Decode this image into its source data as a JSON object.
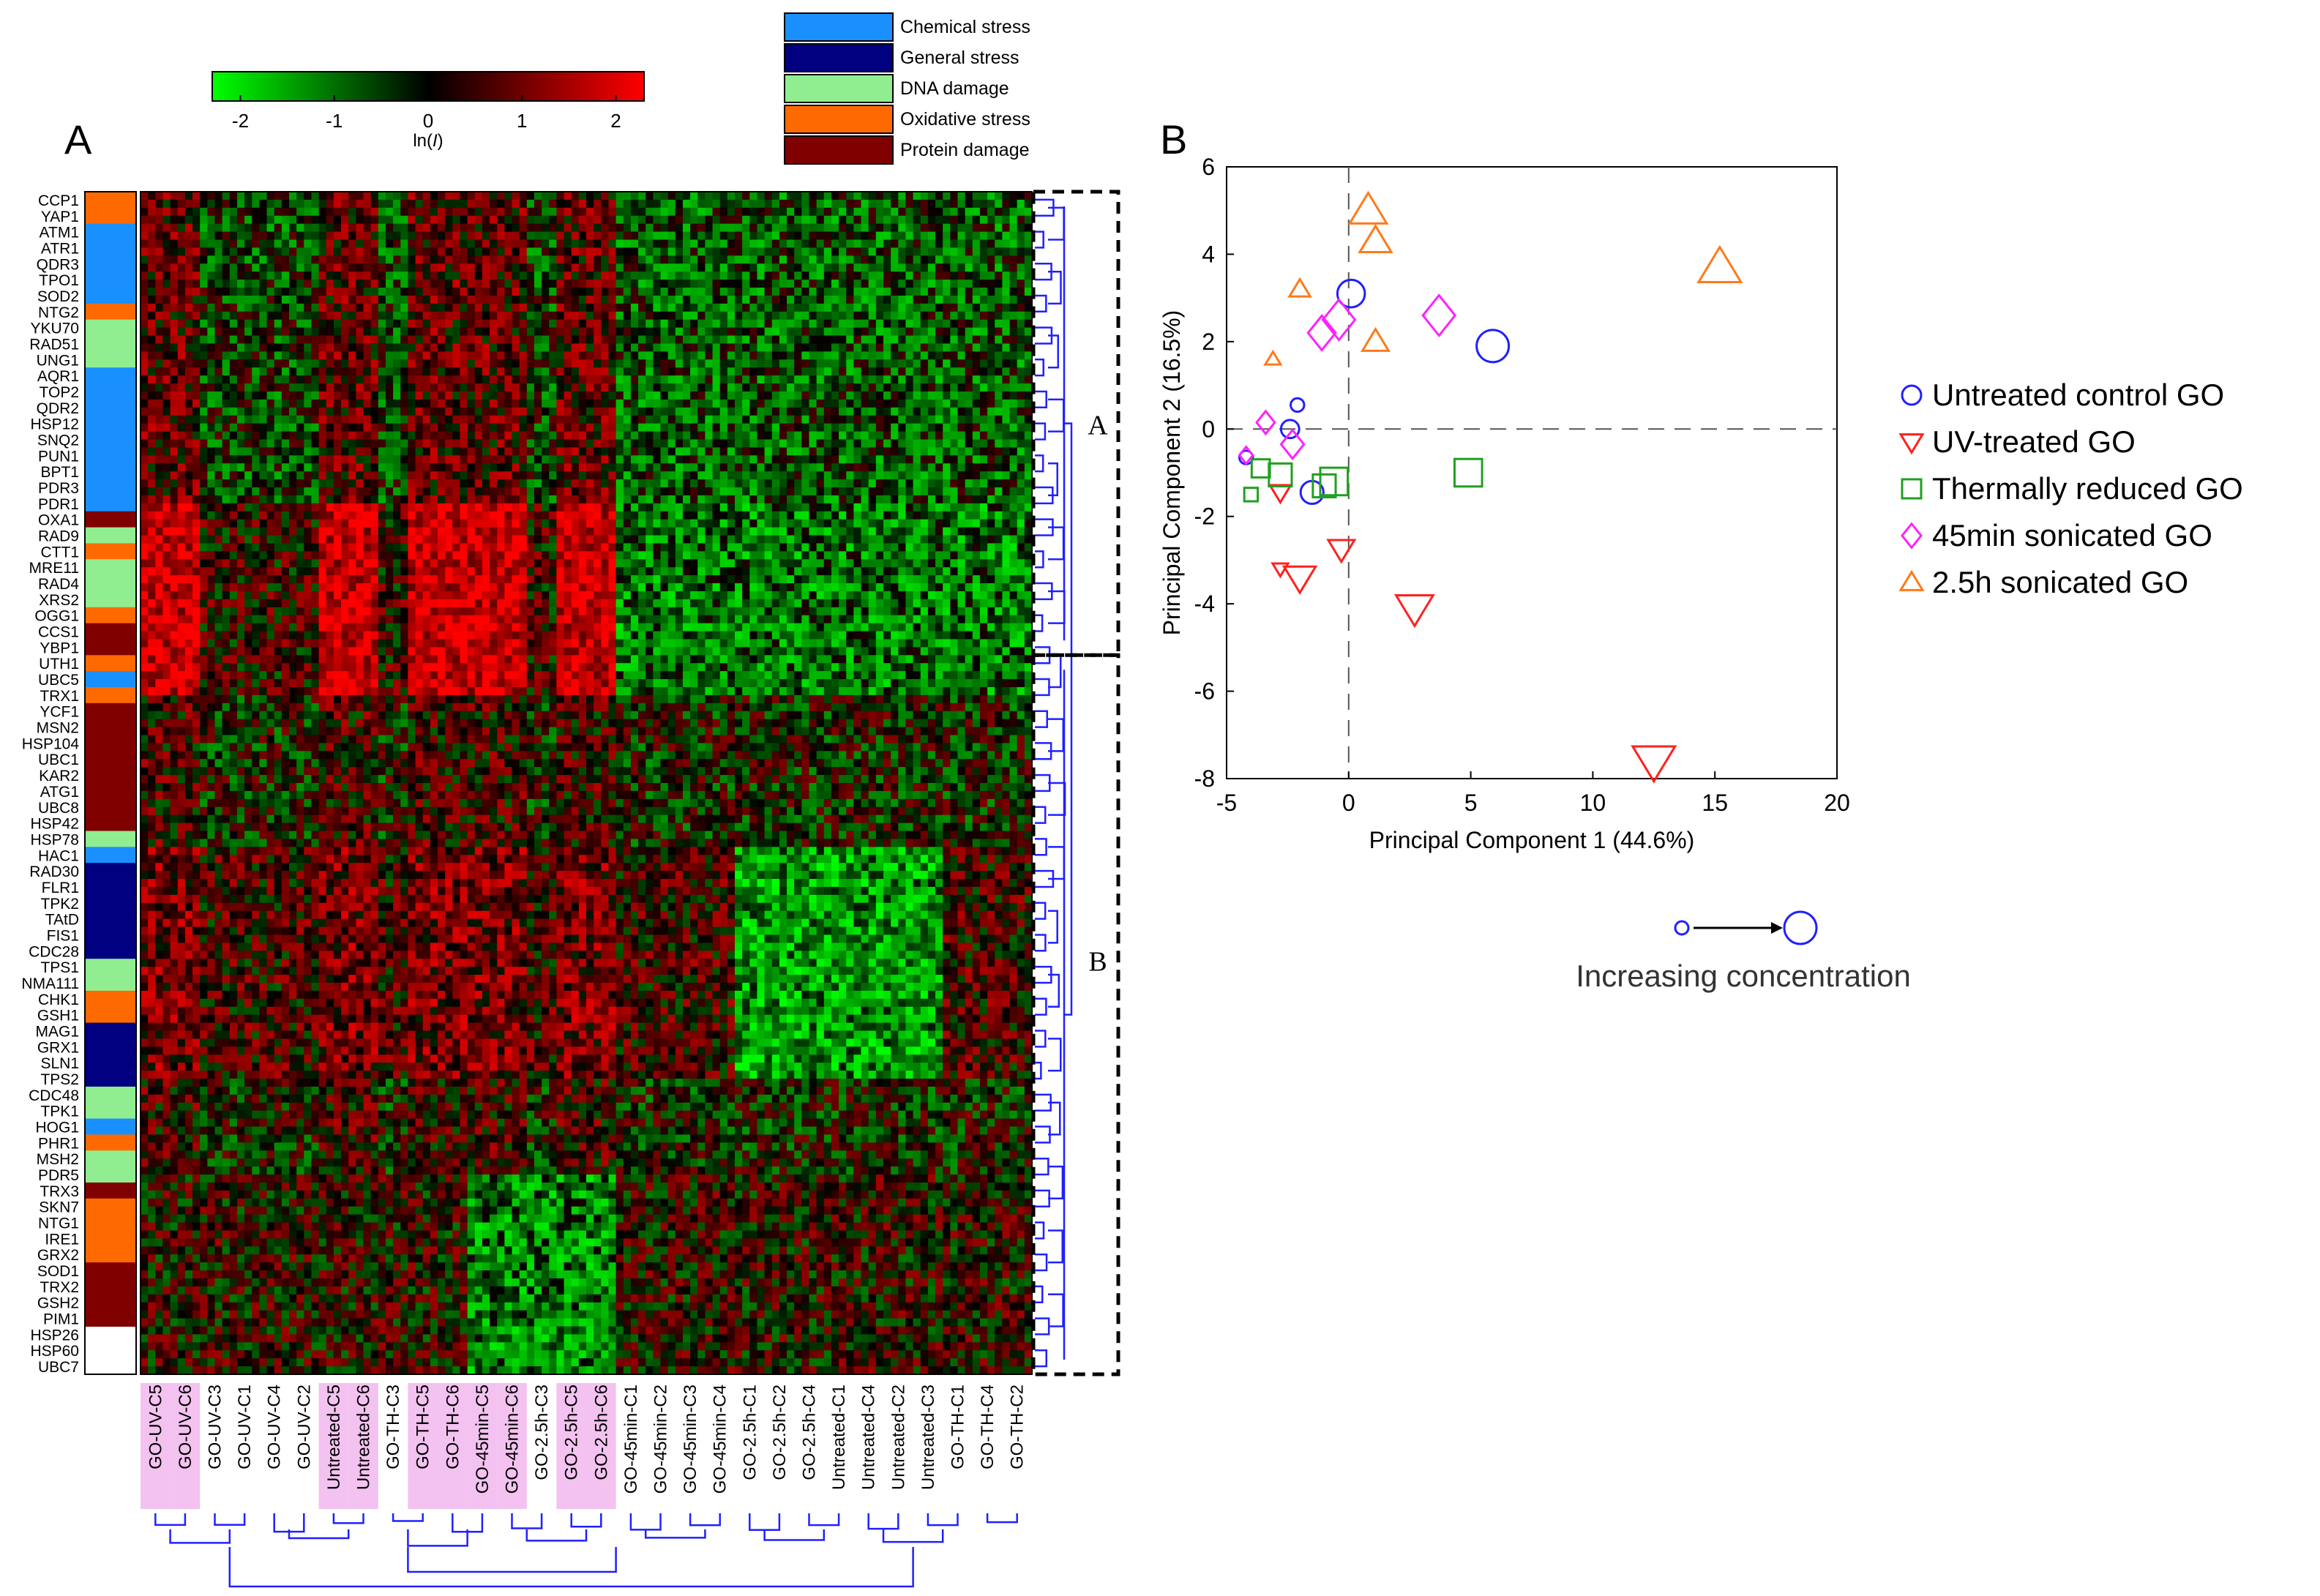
{
  "panel_a": {
    "letter": "A",
    "colorbar": {
      "ticks": [
        "-2",
        "-1",
        "0",
        "1",
        "2"
      ],
      "tick_values": [
        -2,
        -1,
        0,
        1,
        2
      ],
      "range": [
        -2.3,
        2.3
      ],
      "label": "ln(",
      "label_italic": "I",
      "label_end": ")",
      "low_color": "#00ff00",
      "mid_color": "#000000",
      "high_color": "#ff0000"
    },
    "category_legend": [
      {
        "label": "Chemical stress",
        "color": "#1a90ff"
      },
      {
        "label": "General stress",
        "color": "#000080"
      },
      {
        "label": "DNA damage",
        "color": "#90ee90"
      },
      {
        "label": "Oxidative stress",
        "color": "#ff6a00"
      },
      {
        "label": "Protein damage",
        "color": "#800000"
      }
    ],
    "genes_labeled": [
      "CCP1",
      "YAP1",
      "ATM1",
      "ATR1",
      "QDR3",
      "TPO1",
      "SOD2",
      "NTG2",
      "YKU70",
      "RAD51",
      "UNG1",
      "AQR1",
      "TOP2",
      "QDR2",
      "HSP12",
      "SNQ2",
      "PUN1",
      "BPT1",
      "PDR3",
      "PDR1",
      "OXA1",
      "RAD9",
      "CTT1",
      "MRE11",
      "RAD4",
      "XRS2",
      "OGG1",
      "CCS1",
      "YBP1",
      "UTH1",
      "UBC5",
      "TRX1",
      "YCF1",
      "MSN2",
      "HSP104",
      "UBC1",
      "KAR2",
      "ATG1",
      "UBC8",
      "HSP42",
      "HSP78",
      "HAC1",
      "RAD30",
      "FLR1",
      "TPK2",
      "TAtD",
      "FIS1",
      "CDC28",
      "TPS1",
      "NMA111",
      "CHK1",
      "GSH1",
      "MAG1",
      "GRX1",
      "SLN1",
      "TPS2",
      "CDC48",
      "TPK1",
      "HOG1",
      "PHR1",
      "MSH2",
      "PDR5",
      "TRX3",
      "SKN7",
      "NTG1",
      "IRE1",
      "GRX2",
      "SOD1",
      "TRX2",
      "GSH2",
      "PIM1",
      "HSP26",
      "HSP60",
      "UBC7"
    ],
    "category_bar": [
      {
        "category": "Oxidative stress",
        "span": 2
      },
      {
        "category": "Chemical stress",
        "span": 5
      },
      {
        "category": "Oxidative stress",
        "span": 1
      },
      {
        "category": "DNA damage",
        "span": 3
      },
      {
        "category": "Chemical stress",
        "span": 9
      },
      {
        "category": "Protein damage",
        "span": 1
      },
      {
        "category": "DNA damage",
        "span": 1
      },
      {
        "category": "Oxidative stress",
        "span": 1
      },
      {
        "category": "DNA damage",
        "span": 3
      },
      {
        "category": "Oxidative stress",
        "span": 1
      },
      {
        "category": "Protein damage",
        "span": 2
      },
      {
        "category": "Oxidative stress",
        "span": 1
      },
      {
        "category": "Chemical stress",
        "span": 1
      },
      {
        "category": "Oxidative stress",
        "span": 1
      },
      {
        "category": "Protein damage",
        "span": 8
      },
      {
        "category": "DNA damage",
        "span": 1
      },
      {
        "category": "Chemical stress",
        "span": 1
      },
      {
        "category": "General stress",
        "span": 6
      },
      {
        "category": "DNA damage",
        "span": 2
      },
      {
        "category": "Oxidative stress",
        "span": 2
      },
      {
        "category": "General stress",
        "span": 4
      },
      {
        "category": "DNA damage",
        "span": 2
      },
      {
        "category": "Chemical stress",
        "span": 1
      },
      {
        "category": "Oxidative stress",
        "span": 1
      },
      {
        "category": "DNA damage",
        "span": 2
      },
      {
        "category": "Protein damage",
        "span": 1
      },
      {
        "category": "Oxidative stress",
        "span": 4
      },
      {
        "category": "Protein damage",
        "span": 4
      }
    ],
    "conditions": [
      {
        "label": "GO-UV-C5",
        "highlight": true
      },
      {
        "label": "GO-UV-C6",
        "highlight": true
      },
      {
        "label": "GO-UV-C3",
        "highlight": false
      },
      {
        "label": "GO-UV-C1",
        "highlight": false
      },
      {
        "label": "GO-UV-C4",
        "highlight": false
      },
      {
        "label": "GO-UV-C2",
        "highlight": false
      },
      {
        "label": "Untreated-C5",
        "highlight": true
      },
      {
        "label": "Untreated-C6",
        "highlight": true
      },
      {
        "label": "GO-TH-C3",
        "highlight": false
      },
      {
        "label": "GO-TH-C5",
        "highlight": true
      },
      {
        "label": "GO-TH-C6",
        "highlight": true
      },
      {
        "label": "GO-45min-C5",
        "highlight": true
      },
      {
        "label": "GO-45min-C6",
        "highlight": true
      },
      {
        "label": "GO-2.5h-C3",
        "highlight": false
      },
      {
        "label": "GO-2.5h-C5",
        "highlight": true
      },
      {
        "label": "GO-2.5h-C6",
        "highlight": true
      },
      {
        "label": "GO-45min-C1",
        "highlight": false
      },
      {
        "label": "GO-45min-C2",
        "highlight": false
      },
      {
        "label": "GO-45min-C3",
        "highlight": false
      },
      {
        "label": "GO-45min-C4",
        "highlight": false
      },
      {
        "label": "GO-2.5h-C1",
        "highlight": false
      },
      {
        "label": "GO-2.5h-C2",
        "highlight": false
      },
      {
        "label": "GO-2.5h-C4",
        "highlight": false
      },
      {
        "label": "Untreated-C1",
        "highlight": false
      },
      {
        "label": "Untreated-C4",
        "highlight": false
      },
      {
        "label": "Untreated-C2",
        "highlight": false
      },
      {
        "label": "Untreated-C3",
        "highlight": false
      },
      {
        "label": "GO-TH-C1",
        "highlight": false
      },
      {
        "label": "GO-TH-C4",
        "highlight": false
      },
      {
        "label": "GO-TH-C2",
        "highlight": false
      }
    ],
    "highlight_color": "#f3c2f0",
    "cluster_labels": [
      "A",
      "B"
    ],
    "cluster_split_gene": "UTH1",
    "dendrogram_color": "#2020ff"
  },
  "chart_data": {
    "type": "scatter",
    "panel_letter": "B",
    "title": "",
    "xlabel": "Principal Component 1 (44.6%)",
    "ylabel": "Principal Component 2 (16.5%)",
    "xlim": [
      -5,
      20
    ],
    "ylim": [
      -8,
      6
    ],
    "xticks": [
      -5,
      0,
      5,
      10,
      15,
      20
    ],
    "yticks": [
      -8,
      -6,
      -4,
      -2,
      0,
      2,
      4,
      6
    ],
    "grid": false,
    "reference_lines": {
      "x": 0,
      "y": 0,
      "style": "dashed"
    },
    "legend_position": "right",
    "series": [
      {
        "name": "Untreated control GO",
        "marker": "circle",
        "color": "#2020ff",
        "points": [
          [
            -2.1,
            0.55,
            1
          ],
          [
            -2.4,
            0.0,
            2
          ],
          [
            -1.5,
            -1.45,
            3
          ],
          [
            -4.2,
            -0.65,
            1
          ],
          [
            0.1,
            3.1,
            4
          ],
          [
            5.9,
            1.9,
            5
          ]
        ]
      },
      {
        "name": "UV-treated GO",
        "marker": "triangle-down",
        "color": "#ff2020",
        "points": [
          [
            -2.8,
            -3.2,
            1
          ],
          [
            -2.8,
            -1.45,
            2
          ],
          [
            -0.3,
            -2.75,
            3
          ],
          [
            -2.0,
            -3.4,
            4
          ],
          [
            2.7,
            -4.1,
            5
          ],
          [
            12.5,
            -7.6,
            6
          ]
        ]
      },
      {
        "name": "Thermally reduced GO",
        "marker": "square",
        "color": "#20a020",
        "points": [
          [
            -4.0,
            -1.5,
            1
          ],
          [
            -3.6,
            -0.9,
            2
          ],
          [
            -1.0,
            -1.3,
            3
          ],
          [
            -2.8,
            -1.05,
            3
          ],
          [
            -0.6,
            -1.2,
            4
          ],
          [
            4.9,
            -1.0,
            4
          ]
        ]
      },
      {
        "name": "45min sonicated GO",
        "marker": "diamond",
        "color": "#ff20ff",
        "points": [
          [
            -4.2,
            -0.6,
            1
          ],
          [
            -3.4,
            0.15,
            2
          ],
          [
            -2.3,
            -0.35,
            3
          ],
          [
            -1.1,
            2.2,
            4
          ],
          [
            -0.4,
            2.5,
            5
          ],
          [
            3.7,
            2.6,
            5
          ]
        ]
      },
      {
        "name": "2.5h sonicated GO",
        "marker": "triangle-up",
        "color": "#ff7a1a",
        "points": [
          [
            -3.1,
            1.6,
            1
          ],
          [
            -2.0,
            3.2,
            2
          ],
          [
            1.1,
            2.0,
            3
          ],
          [
            1.1,
            4.3,
            4
          ],
          [
            0.8,
            5.0,
            5
          ],
          [
            15.2,
            3.7,
            6
          ]
        ]
      }
    ],
    "size_note": "Increasing concentration"
  }
}
